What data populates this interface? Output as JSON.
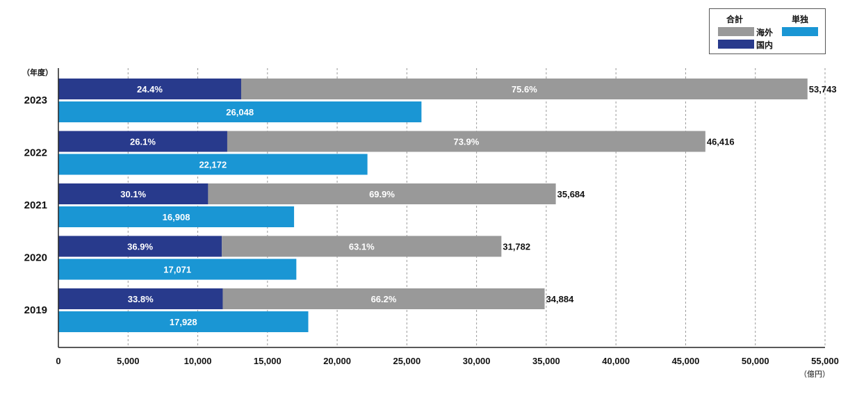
{
  "legend": {
    "total_heading": "合計",
    "standalone_heading": "単独",
    "overseas_label": "海外",
    "domestic_label": "国内"
  },
  "y_unit": "（年度）",
  "x_unit": "（億円）",
  "colors": {
    "domestic": "#283a8c",
    "overseas": "#999999",
    "standalone": "#1a96d4",
    "grid": "#9a9a9a",
    "axis": "#222222"
  },
  "chart_data": {
    "type": "bar",
    "orientation": "horizontal",
    "stacked_total": true,
    "categories": [
      "2023",
      "2022",
      "2021",
      "2020",
      "2019"
    ],
    "series": [
      {
        "name": "国内",
        "percent_labels": [
          "24.4%",
          "26.1%",
          "30.1%",
          "36.9%",
          "33.8%"
        ],
        "values": [
          13113,
          12115,
          10741,
          11728,
          11791
        ]
      },
      {
        "name": "海外",
        "percent_labels": [
          "75.6%",
          "73.9%",
          "69.9%",
          "63.1%",
          "66.2%"
        ],
        "values": [
          40630,
          34301,
          24943,
          20054,
          23093
        ]
      },
      {
        "name": "単独",
        "values": [
          26048,
          22172,
          16908,
          17071,
          17928
        ]
      }
    ],
    "totals": [
      53743,
      46416,
      35684,
      31782,
      34884
    ],
    "total_labels": [
      "53,743",
      "46,416",
      "35,684",
      "31,782",
      "34,884"
    ],
    "standalone_labels": [
      "26,048",
      "22,172",
      "16,908",
      "17,071",
      "17,928"
    ],
    "x_ticks": [
      "0",
      "5,000",
      "10,000",
      "15,000",
      "20,000",
      "25,000",
      "30,000",
      "35,000",
      "40,000",
      "45,000",
      "50,000",
      "55,000"
    ],
    "xlim": [
      0,
      55000
    ],
    "grid": true,
    "legend_position": "top-right"
  }
}
